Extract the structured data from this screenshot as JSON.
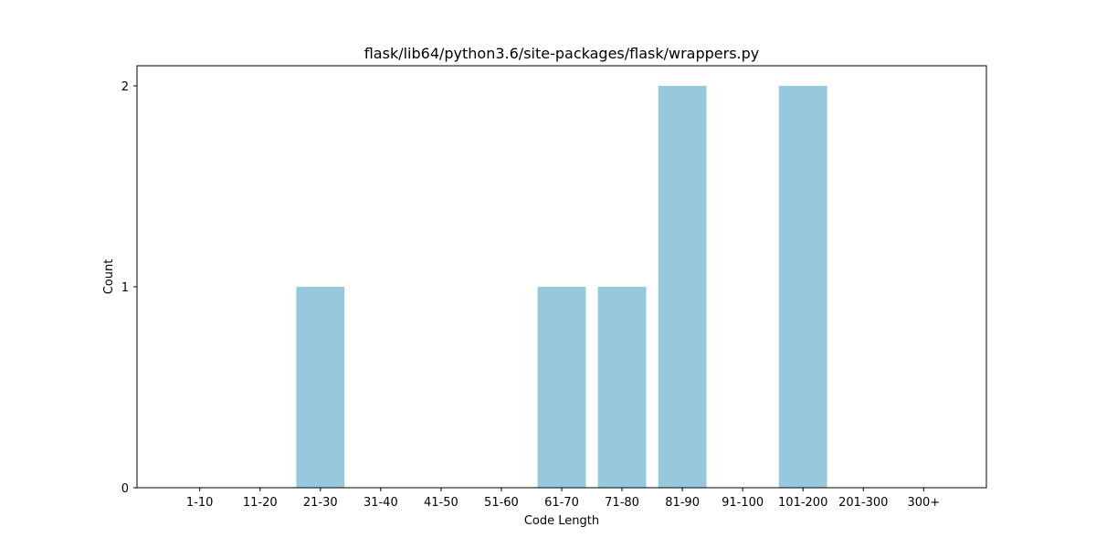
{
  "chart_data": {
    "type": "bar",
    "title": "flask/lib64/python3.6/site-packages/flask/wrappers.py",
    "xlabel": "Code Length",
    "ylabel": "Count",
    "categories": [
      "1-10",
      "11-20",
      "21-30",
      "31-40",
      "41-50",
      "51-60",
      "61-70",
      "71-80",
      "81-90",
      "91-100",
      "101-200",
      "201-300",
      "300+"
    ],
    "values": [
      0,
      0,
      1,
      0,
      0,
      0,
      1,
      1,
      2,
      0,
      2,
      0,
      0
    ],
    "ylim": [
      0,
      2.1
    ],
    "yticks": [
      0,
      1,
      2
    ],
    "bar_color": "#96c9dc",
    "grid": false,
    "legend": "none"
  }
}
